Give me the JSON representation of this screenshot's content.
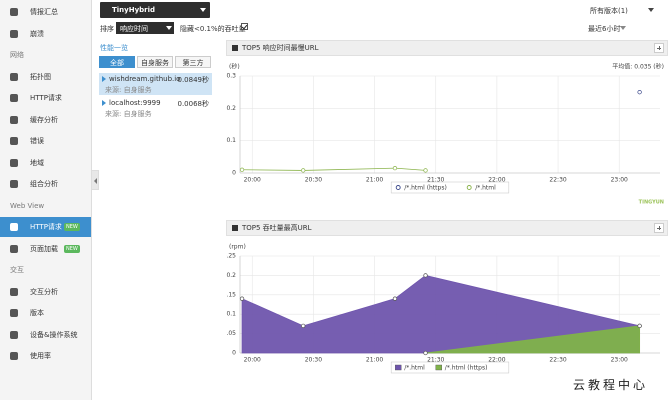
{
  "header": {
    "app": "TinyHybrid",
    "version_filter": "所有版本(1)",
    "sort_label": "排序",
    "sort_value": "响应时间",
    "hide_checkbox": "隐藏<0.1%的吞吐量",
    "time_range": "最近6小时"
  },
  "sidebar": {
    "items": [
      {
        "label": "情报汇总"
      },
      {
        "label": "崩溃"
      }
    ],
    "groups": [
      {
        "title": "网络",
        "items": [
          {
            "label": "拓扑图"
          },
          {
            "label": "HTTP请求"
          },
          {
            "label": "缓存分析"
          },
          {
            "label": "错误"
          },
          {
            "label": "地域"
          },
          {
            "label": "组合分析"
          }
        ]
      },
      {
        "title": "Web View",
        "items": [
          {
            "label": "HTTP请求",
            "badge": "NEW",
            "active": true
          },
          {
            "label": "页面加载",
            "badge": "NEW"
          }
        ]
      },
      {
        "title": "交互",
        "items": [
          {
            "label": "交互分析"
          },
          {
            "label": "版本"
          },
          {
            "label": "设备&操作系统"
          },
          {
            "label": "使用率"
          }
        ]
      }
    ]
  },
  "list_panel": {
    "title": "性能一览",
    "tabs": [
      {
        "label": "全部",
        "active": true
      },
      {
        "label": "自身服务"
      },
      {
        "label": "第三方"
      }
    ],
    "entries": [
      {
        "host": "wishdream.github.io",
        "value": "0.0849秒",
        "source": "来源: 自身服务",
        "selected": true
      },
      {
        "host": "localhost:9999",
        "value": "0.0068秒",
        "source": "来源: 自身服务"
      }
    ]
  },
  "chart_data": [
    {
      "type": "line",
      "title": "TOP5 响应时间最慢URL",
      "y_label": "(秒)",
      "annotation": "平均值: 0.035 (秒)",
      "xlim": [
        "19:54",
        "23:20"
      ],
      "xticks": [
        "20:00",
        "20:30",
        "21:00",
        "21:30",
        "22:00",
        "22:30",
        "23:00"
      ],
      "ylim": [
        0,
        0.3
      ],
      "yticks": [
        0,
        0.1,
        0.2,
        0.3
      ],
      "grid": true,
      "legend_marker": "circle",
      "series": [
        {
          "name": "/*.html (https)",
          "color": "#3d4a8c",
          "x": [
            "23:10"
          ],
          "values": [
            0.25
          ]
        },
        {
          "name": "/*.html",
          "color": "#8ab34a",
          "x": [
            "19:55",
            "20:25",
            "21:10",
            "21:25"
          ],
          "values": [
            0.01,
            0.008,
            0.015,
            0.008
          ]
        }
      ]
    },
    {
      "type": "area",
      "title": "TOP5 吞吐量最高URL",
      "y_label": "(rpm)",
      "xlim": [
        "19:54",
        "23:20"
      ],
      "xticks": [
        "20:00",
        "20:30",
        "21:00",
        "21:30",
        "22:00",
        "22:30",
        "23:00"
      ],
      "ylim": [
        0,
        0.25
      ],
      "yticks": [
        0,
        0.05,
        0.1,
        0.15,
        0.2,
        0.25
      ],
      "grid": true,
      "legend_marker": "square",
      "series": [
        {
          "name": "/*.html",
          "color": "#6f55ad",
          "x": [
            "19:55",
            "20:25",
            "21:10",
            "21:25",
            "23:10"
          ],
          "values": [
            0.14,
            0.07,
            0.14,
            0.2,
            0.07
          ]
        },
        {
          "name": "/*.html (https)",
          "color": "#80b24a",
          "x": [
            "21:25",
            "23:10"
          ],
          "values": [
            0,
            0.07
          ]
        }
      ]
    }
  ],
  "brand": "TINGYUN",
  "watermark": "云教程中心"
}
